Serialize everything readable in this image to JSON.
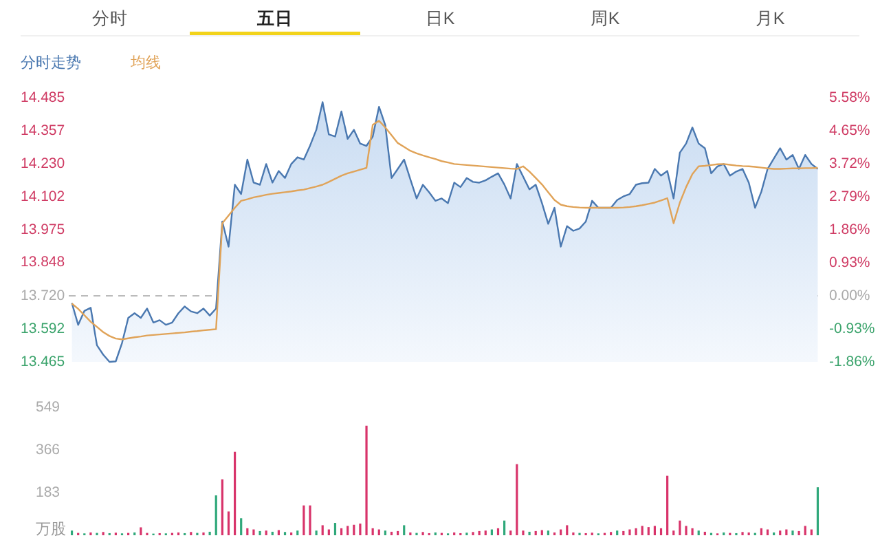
{
  "chart_data": [
    {
      "type": "line",
      "annotations": [
        "分时",
        "五日",
        "日K",
        "周K",
        "月K"
      ],
      "categories": [
        null,
        null,
        null,
        null,
        null,
        null,
        null,
        null,
        null,
        null,
        null,
        null,
        null,
        null,
        null,
        null,
        null,
        null,
        null,
        null,
        null,
        null,
        null,
        null,
        null,
        null,
        null,
        null,
        null,
        null,
        null,
        null,
        null,
        null,
        null,
        null,
        null,
        null,
        null,
        null,
        null,
        null,
        null,
        null,
        null,
        null,
        null,
        null,
        null,
        null,
        null,
        null,
        null,
        null,
        null,
        null,
        null,
        null,
        null,
        null,
        null,
        null,
        null,
        null,
        null,
        null,
        null,
        null,
        null,
        null,
        null,
        null,
        null,
        null,
        null,
        null,
        null,
        null,
        null,
        null,
        null,
        null,
        null,
        null,
        null,
        null,
        null,
        null,
        null,
        null,
        null,
        null,
        null,
        null,
        null,
        null,
        null,
        null,
        null,
        null,
        null,
        null,
        null,
        null,
        null,
        null,
        null,
        null,
        null,
        null,
        null,
        null,
        null,
        null,
        null,
        null,
        null,
        null,
        null,
        null
      ],
      "ylim": [
        13.465,
        14.485
      ],
      "yticks": [
        14.485,
        14.357,
        {
          "value": 14.23,
          "label": "14.230"
        },
        14.102,
        13.975,
        13.848,
        {
          "value": 13.72,
          "label": "13.720"
        },
        13.592,
        13.465
      ],
      "y2lim": [
        -1.86,
        5.58
      ],
      "y2ticks": [
        {
          "value": 5.58,
          "label": "5.58%"
        },
        {
          "value": 4.65,
          "label": "4.65%"
        },
        {
          "value": 3.72,
          "label": "3.72%"
        },
        {
          "value": 2.79,
          "label": "2.79%"
        },
        {
          "value": 1.86,
          "label": "1.86%"
        },
        {
          "value": 0.93,
          "label": "0.93%"
        },
        {
          "value": 0,
          "label": "0.00%"
        },
        {
          "value": -0.93,
          "label": "-0.93%"
        },
        {
          "value": -1.86,
          "label": "-1.86%"
        }
      ],
      "ref_lines": [
        {
          "axis": "y",
          "value": 13.72,
          "color": "#bbbbbb",
          "line_style": "dashed"
        }
      ],
      "tick_labels": "y",
      "series": [
        {
          "name": "分时走势",
          "type": "area",
          "color": "#4a78b0",
          "values": [
            13.692,
            13.608,
            13.662,
            13.674,
            13.529,
            13.493,
            13.465,
            13.467,
            13.538,
            13.635,
            13.653,
            13.635,
            13.671,
            13.617,
            13.626,
            13.608,
            13.617,
            13.653,
            13.679,
            13.66,
            13.653,
            13.671,
            13.644,
            13.671,
            14.007,
            13.91,
            14.149,
            14.113,
            14.246,
            14.157,
            14.149,
            14.229,
            14.157,
            14.202,
            14.175,
            14.229,
            14.255,
            14.246,
            14.3,
            14.361,
            14.468,
            14.343,
            14.335,
            14.432,
            14.326,
            14.361,
            14.308,
            14.299,
            14.335,
            14.45,
            14.379,
            14.175,
            14.21,
            14.246,
            14.17,
            14.096,
            14.149,
            14.12,
            14.087,
            14.096,
            14.078,
            14.157,
            14.14,
            14.175,
            14.16,
            14.157,
            14.166,
            14.18,
            14.193,
            14.15,
            14.096,
            14.229,
            14.18,
            14.131,
            14.149,
            14.078,
            13.998,
            14.06,
            13.91,
            13.989,
            13.971,
            13.98,
            14.007,
            14.087,
            14.06,
            14.06,
            14.06,
            14.09,
            14.104,
            14.113,
            14.149,
            14.155,
            14.157,
            14.21,
            14.184,
            14.202,
            14.096,
            14.273,
            14.308,
            14.37,
            14.308,
            14.29,
            14.193,
            14.22,
            14.229,
            14.184,
            14.2,
            14.21,
            14.157,
            14.06,
            14.122,
            14.21,
            14.25,
            14.29,
            14.246,
            14.264,
            14.21,
            14.264,
            14.229,
            14.21
          ]
        },
        {
          "name": "均线",
          "type": "line",
          "color": "#e0a358",
          "values": [
            13.69,
            13.67,
            13.645,
            13.62,
            13.6,
            13.58,
            13.565,
            13.555,
            13.552,
            13.556,
            13.56,
            13.563,
            13.567,
            13.569,
            13.571,
            13.573,
            13.575,
            13.577,
            13.579,
            13.582,
            13.584,
            13.587,
            13.589,
            13.591,
            14.0,
            14.03,
            14.06,
            14.087,
            14.093,
            14.1,
            14.105,
            14.11,
            14.114,
            14.117,
            14.12,
            14.123,
            14.127,
            14.13,
            14.136,
            14.142,
            14.149,
            14.16,
            14.172,
            14.184,
            14.193,
            14.2,
            14.207,
            14.214,
            14.38,
            14.396,
            14.37,
            14.34,
            14.31,
            14.295,
            14.28,
            14.27,
            14.262,
            14.255,
            14.248,
            14.24,
            14.235,
            14.229,
            14.227,
            14.225,
            14.223,
            14.221,
            14.219,
            14.217,
            14.215,
            14.213,
            14.211,
            14.21,
            14.22,
            14.2,
            14.175,
            14.15,
            14.12,
            14.09,
            14.072,
            14.066,
            14.063,
            14.061,
            14.06,
            14.06,
            14.06,
            14.06,
            14.06,
            14.06,
            14.061,
            14.063,
            14.066,
            14.07,
            14.075,
            14.08,
            14.088,
            14.097,
            14.0,
            14.08,
            14.14,
            14.19,
            14.22,
            14.222,
            14.225,
            14.228,
            14.229,
            14.226,
            14.223,
            14.221,
            14.22,
            14.218,
            14.215,
            14.212,
            14.21,
            14.21,
            14.211,
            14.212,
            14.212,
            14.213,
            14.213,
            14.214
          ]
        }
      ]
    },
    {
      "type": "bar",
      "ylabel": "万股",
      "ylim": [
        0,
        549
      ],
      "yticks": [
        183,
        366,
        549
      ],
      "tick_labels": "y",
      "categories": [
        null,
        null,
        null,
        null,
        null,
        null,
        null,
        null,
        null,
        null,
        null,
        null,
        null,
        null,
        null,
        null,
        null,
        null,
        null,
        null,
        null,
        null,
        null,
        null,
        null,
        null,
        null,
        null,
        null,
        null,
        null,
        null,
        null,
        null,
        null,
        null,
        null,
        null,
        null,
        null,
        null,
        null,
        null,
        null,
        null,
        null,
        null,
        null,
        null,
        null,
        null,
        null,
        null,
        null,
        null,
        null,
        null,
        null,
        null,
        null,
        null,
        null,
        null,
        null,
        null,
        null,
        null,
        null,
        null,
        null,
        null,
        null,
        null,
        null,
        null,
        null,
        null,
        null,
        null,
        null,
        null,
        null,
        null,
        null,
        null,
        null,
        null,
        null,
        null,
        null,
        null,
        null,
        null,
        null,
        null,
        null,
        null,
        null,
        null,
        null,
        null,
        null,
        null,
        null,
        null,
        null,
        null,
        null,
        null,
        null,
        null,
        null,
        null,
        null,
        null,
        null,
        null,
        null,
        null,
        null
      ],
      "values": [
        20,
        10,
        8,
        12,
        10,
        14,
        9,
        11,
        8,
        10,
        12,
        34,
        10,
        7,
        9,
        8,
        10,
        12,
        9,
        14,
        10,
        12,
        15,
        171,
        240,
        102,
        358,
        73,
        30,
        25,
        18,
        20,
        15,
        22,
        14,
        12,
        20,
        128,
        128,
        20,
        43,
        25,
        53,
        30,
        40,
        45,
        50,
        470,
        30,
        25,
        20,
        15,
        18,
        43,
        12,
        10,
        14,
        9,
        12,
        10,
        8,
        12,
        9,
        11,
        14,
        18,
        20,
        25,
        30,
        63,
        20,
        305,
        20,
        15,
        18,
        22,
        20,
        12,
        25,
        43,
        12,
        10,
        9,
        11,
        8,
        10,
        14,
        20,
        18,
        25,
        30,
        40,
        35,
        40,
        30,
        255,
        20,
        63,
        40,
        30,
        20,
        15,
        10,
        8,
        12,
        10,
        9,
        14,
        12,
        10,
        30,
        25,
        12,
        20,
        25,
        20,
        18,
        40,
        25,
        206
      ],
      "colors": [
        "#2fa87a",
        "#d8336a",
        "#2fa87a",
        "#d8336a",
        "#2fa87a",
        "#d8336a",
        "#2fa87a",
        "#d8336a",
        "#2fa87a",
        "#d8336a",
        "#2fa87a",
        "#d8336a",
        "#d8336a",
        "#2fa87a",
        "#d8336a",
        "#2fa87a",
        "#d8336a",
        "#d8336a",
        "#2fa87a",
        "#d8336a",
        "#2fa87a",
        "#d8336a",
        "#2fa87a",
        "#2fa87a",
        "#d8336a",
        "#d8336a",
        "#d8336a",
        "#2fa87a",
        "#d8336a",
        "#d8336a",
        "#2fa87a",
        "#d8336a",
        "#2fa87a",
        "#d8336a",
        "#2fa87a",
        "#d8336a",
        "#2fa87a",
        "#d8336a",
        "#d8336a",
        "#2fa87a",
        "#d8336a",
        "#d8336a",
        "#2fa87a",
        "#d8336a",
        "#d8336a",
        "#d8336a",
        "#d8336a",
        "#d8336a",
        "#d8336a",
        "#d8336a",
        "#2fa87a",
        "#d8336a",
        "#d8336a",
        "#2fa87a",
        "#d8336a",
        "#2fa87a",
        "#d8336a",
        "#d8336a",
        "#2fa87a",
        "#d8336a",
        "#2fa87a",
        "#d8336a",
        "#d8336a",
        "#2fa87a",
        "#d8336a",
        "#d8336a",
        "#d8336a",
        "#2fa87a",
        "#d8336a",
        "#2fa87a",
        "#d8336a",
        "#d8336a",
        "#d8336a",
        "#2fa87a",
        "#d8336a",
        "#d8336a",
        "#2fa87a",
        "#d8336a",
        "#d8336a",
        "#d8336a",
        "#d8336a",
        "#2fa87a",
        "#d8336a",
        "#d8336a",
        "#2fa87a",
        "#d8336a",
        "#d8336a",
        "#2fa87a",
        "#d8336a",
        "#d8336a",
        "#d8336a",
        "#d8336a",
        "#d8336a",
        "#d8336a",
        "#d8336a",
        "#d8336a",
        "#d8336a",
        "#d8336a",
        "#d8336a",
        "#d8336a",
        "#2fa87a",
        "#d8336a",
        "#2fa87a",
        "#d8336a",
        "#2fa87a",
        "#d8336a",
        "#2fa87a",
        "#d8336a",
        "#d8336a",
        "#2fa87a",
        "#d8336a",
        "#d8336a",
        "#2fa87a",
        "#d8336a",
        "#d8336a",
        "#2fa87a",
        "#d8336a",
        "#d8336a",
        "#d8336a",
        "#2fa87a"
      ]
    }
  ]
}
